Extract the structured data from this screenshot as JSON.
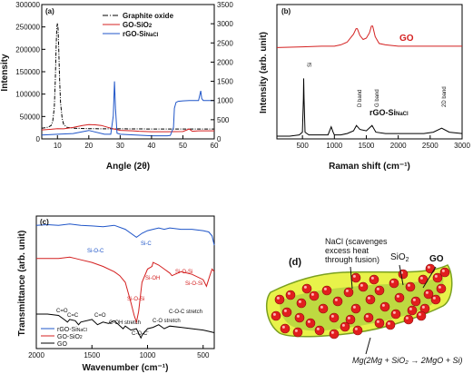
{
  "chart_data": [
    {
      "type": "line",
      "panel_label": "(a)",
      "xlabel": "Angle (2θ)",
      "ylabel": "Intensity",
      "xlim": [
        5,
        60
      ],
      "ylim_left": [
        0,
        300000
      ],
      "ylim_right": [
        0,
        3500
      ],
      "x_ticks": [
        "10",
        "20",
        "30",
        "40",
        "50",
        "60"
      ],
      "y_ticks_left": [
        "0",
        "50000",
        "100000",
        "150000",
        "200000",
        "250000",
        "300000"
      ],
      "y_ticks_right": [
        "0",
        "500",
        "1000",
        "1500",
        "2000",
        "2500",
        "3000",
        "3500"
      ],
      "legend": [
        {
          "label": "Graphite oxide",
          "sub": "",
          "color": "#000000",
          "dash": "6,2,1,2"
        },
        {
          "label": "GO-SiO",
          "sub": "2",
          "color": "#d42020",
          "dash": ""
        },
        {
          "label": "rGO-Si",
          "sub": "NaCl",
          "color": "#1f55c8",
          "dash": ""
        }
      ],
      "series": [
        {
          "name": "Graphite oxide",
          "axis": "left",
          "color": "#000000",
          "dash": "4,1.5,1,1.5",
          "x": [
            5,
            6,
            7,
            8,
            8.5,
            9,
            9.3,
            9.6,
            9.8,
            10,
            10.2,
            10.4,
            10.7,
            11,
            11.5,
            12,
            13,
            15,
            20,
            25,
            30,
            40,
            50,
            60
          ],
          "y": [
            24000,
            25000,
            26000,
            30000,
            40000,
            70000,
            130000,
            210000,
            250000,
            258000,
            245000,
            200000,
            130000,
            80000,
            45000,
            32000,
            26000,
            24000,
            23000,
            22500,
            22500,
            22000,
            22000,
            22000
          ]
        },
        {
          "name": "GO-SiO2",
          "axis": "left",
          "color": "#d42020",
          "dash": "",
          "x": [
            5,
            8,
            10,
            12,
            15,
            18,
            20,
            22,
            24,
            26,
            28,
            30,
            32,
            34,
            36,
            40,
            45,
            50,
            52,
            53,
            55,
            58,
            60
          ],
          "y": [
            20000,
            21500,
            23000,
            22500,
            25500,
            30000,
            32000,
            31500,
            30000,
            26000,
            22000,
            19000,
            18500,
            18000,
            17000,
            16000,
            16000,
            16500,
            22000,
            17000,
            18000,
            18000,
            18000
          ]
        }
      ],
      "series_right": [
        {
          "name": "rGO-SiNaCl",
          "axis": "right",
          "color": "#1f55c8",
          "dash": "",
          "x": [
            5,
            10,
            15,
            20,
            25,
            27,
            27.8,
            28.2,
            28.5,
            29,
            30,
            35,
            40,
            45,
            46,
            47,
            47.3,
            47.8,
            48.5,
            50,
            52,
            54,
            55,
            55.7,
            56,
            56.5,
            58,
            60
          ],
          "y": [
            100,
            120,
            140,
            220,
            120,
            120,
            600,
            1500,
            800,
            150,
            120,
            100,
            80,
            80,
            90,
            300,
            800,
            950,
            980,
            990,
            1000,
            1000,
            1000,
            1250,
            1050,
            1000,
            1000,
            1000
          ]
        }
      ]
    },
    {
      "type": "line",
      "panel_label": "(b)",
      "xlabel": "Raman shift (cm⁻¹)",
      "ylabel": "Intensity (arb. unit)",
      "xlim": [
        100,
        3000
      ],
      "x_ticks": [
        "500",
        "1000",
        "1500",
        "2000",
        "2500",
        "3000"
      ],
      "labels": {
        "go": "GO",
        "rgo": "rGO-Si",
        "rgo_sub": "NaCl",
        "si": "Si",
        "d_band": "D band",
        "g_band": "G band",
        "band_2d": "2D band"
      },
      "series": [
        {
          "name": "GO",
          "color": "#d42020",
          "x": [
            100,
            500,
            800,
            1000,
            1100,
            1200,
            1300,
            1340,
            1360,
            1400,
            1450,
            1500,
            1550,
            1580,
            1600,
            1640,
            1700,
            1800,
            2000,
            2500,
            3000
          ],
          "y": [
            0.68,
            0.685,
            0.69,
            0.69,
            0.7,
            0.72,
            0.78,
            0.82,
            0.82,
            0.77,
            0.74,
            0.75,
            0.79,
            0.84,
            0.84,
            0.76,
            0.71,
            0.7,
            0.69,
            0.69,
            0.69
          ]
        },
        {
          "name": "rGO-SiNaCl",
          "color": "#000000",
          "x": [
            100,
            300,
            450,
            500,
            515,
            520,
            525,
            540,
            600,
            900,
            950,
            980,
            1000,
            1100,
            1200,
            1300,
            1345,
            1400,
            1500,
            1590,
            1650,
            1800,
            2000,
            2400,
            2550,
            2680,
            2800,
            3000
          ],
          "y": [
            0.02,
            0.02,
            0.03,
            0.05,
            0.3,
            0.45,
            0.3,
            0.05,
            0.03,
            0.03,
            0.09,
            0.05,
            0.03,
            0.03,
            0.04,
            0.06,
            0.1,
            0.07,
            0.06,
            0.1,
            0.05,
            0.04,
            0.04,
            0.04,
            0.05,
            0.08,
            0.05,
            0.04
          ]
        }
      ]
    },
    {
      "type": "line",
      "panel_label": "(c)",
      "xlabel": "Wavenumber (cm⁻¹)",
      "ylabel": "Transmittance (arb. unit)",
      "xlim": [
        2000,
        400
      ],
      "x_ticks": [
        "2000",
        "1500",
        "1000",
        "500"
      ],
      "legend": [
        {
          "label": "rGO-Si",
          "sub": "NaCl",
          "color": "#1f55c8"
        },
        {
          "label": "GO-SiO",
          "sub": "2",
          "color": "#d42020"
        },
        {
          "label": "GO",
          "sub": "",
          "color": "#000000"
        }
      ],
      "annotations_blue": [
        "Si-C",
        "Si-O-C"
      ],
      "annotations_red": [
        "Si-OH",
        "Si-O-Si",
        "Si-O-Si",
        "Si-O-Si"
      ],
      "annotations_black": [
        "C=O",
        "C=C",
        "C=O",
        "C-OH stretch",
        "C-O-C'",
        "C-O stretch",
        "C-O-C stretch"
      ],
      "series": [
        {
          "name": "rGO-SiNaCl",
          "color": "#1f55c8",
          "x": [
            2000,
            1900,
            1800,
            1700,
            1600,
            1500,
            1400,
            1300,
            1200,
            1100,
            1050,
            1000,
            950,
            900,
            850,
            800,
            700,
            600,
            500,
            450,
            420,
            400
          ],
          "y": [
            0.93,
            0.935,
            0.93,
            0.94,
            0.93,
            0.925,
            0.92,
            0.93,
            0.9,
            0.84,
            0.87,
            0.89,
            0.9,
            0.91,
            0.9,
            0.91,
            0.9,
            0.9,
            0.89,
            0.88,
            0.85,
            0.78
          ]
        },
        {
          "name": "GO-SiO2",
          "color": "#d42020",
          "x": [
            2000,
            1900,
            1800,
            1700,
            1650,
            1600,
            1500,
            1400,
            1300,
            1250,
            1200,
            1150,
            1120,
            1100,
            1080,
            1050,
            1000,
            960,
            950,
            900,
            850,
            800,
            780,
            700,
            600,
            500,
            470,
            440,
            420,
            400
          ],
          "y": [
            0.68,
            0.68,
            0.68,
            0.69,
            0.68,
            0.67,
            0.65,
            0.62,
            0.58,
            0.55,
            0.5,
            0.35,
            0.25,
            0.2,
            0.28,
            0.5,
            0.6,
            0.62,
            0.65,
            0.63,
            0.6,
            0.57,
            0.55,
            0.58,
            0.56,
            0.52,
            0.47,
            0.55,
            0.6,
            0.58
          ]
        },
        {
          "name": "GO",
          "color": "#000000",
          "x": [
            2000,
            1900,
            1800,
            1750,
            1720,
            1700,
            1650,
            1620,
            1600,
            1500,
            1450,
            1400,
            1350,
            1300,
            1220,
            1200,
            1150,
            1100,
            1060,
            1050,
            1000,
            950,
            900,
            850,
            800,
            700,
            600,
            500,
            450,
            400
          ],
          "y": [
            0.26,
            0.26,
            0.25,
            0.22,
            0.2,
            0.22,
            0.21,
            0.18,
            0.2,
            0.22,
            0.18,
            0.2,
            0.19,
            0.21,
            0.15,
            0.17,
            0.14,
            0.15,
            0.08,
            0.1,
            0.15,
            0.16,
            0.18,
            0.15,
            0.17,
            0.16,
            0.15,
            0.14,
            0.13,
            0.12
          ]
        }
      ]
    }
  ],
  "diagram_d": {
    "panel_label": "(d)",
    "nacl_label_1": "NaCl (scavenges",
    "nacl_label_2": "excess heat",
    "nacl_label_3": "through fusion)",
    "sio2_label": "SiO",
    "sio2_sub": "2",
    "go_label": "GO",
    "reaction_label": "Mg(2Mg + SiO₂ → 2MgO + Si)",
    "colors": {
      "sheet": "#e8f24a",
      "sheet_edge": "#7aa020",
      "inner": "#9bc43a",
      "sphere": "#e21e1e"
    }
  }
}
